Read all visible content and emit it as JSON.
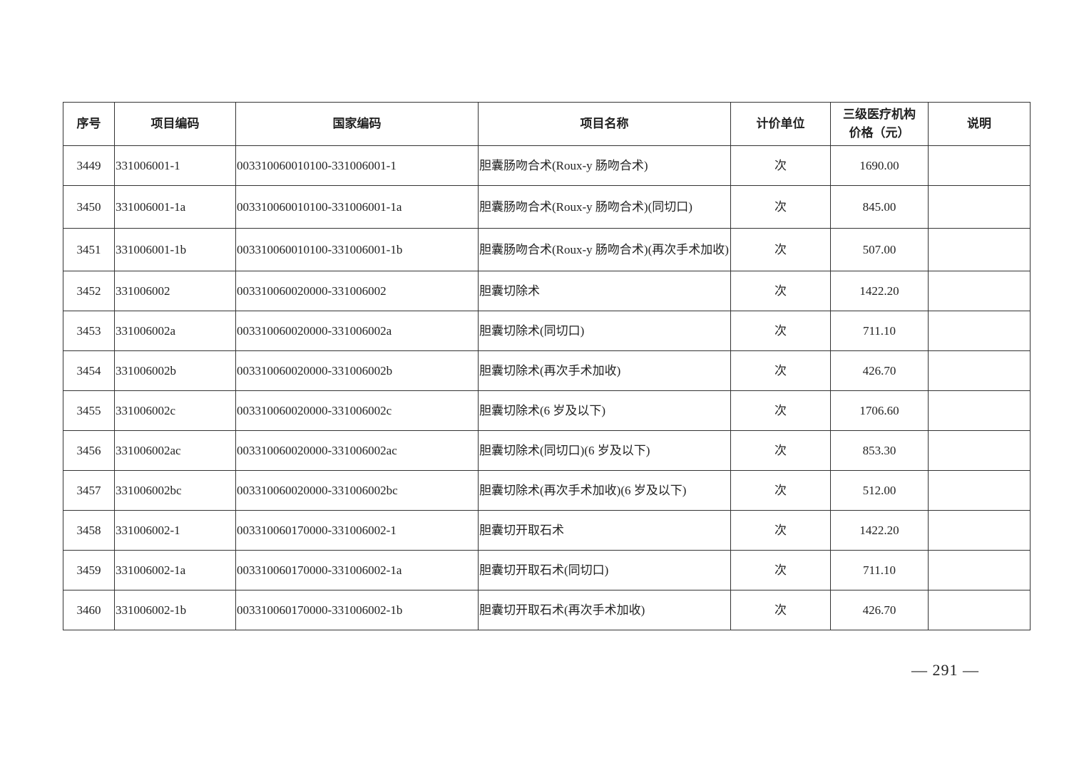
{
  "table": {
    "headers": [
      "序号",
      "项目编码",
      "国家编码",
      "项目名称",
      "计价单位",
      "三级医疗机构价格（元）",
      "说明"
    ],
    "header_price_line1": "三级医疗机构",
    "header_price_line2": "价格（元）",
    "rows": [
      {
        "no": "3449",
        "code": "331006001-1",
        "national": "003310060010100-331006001-1",
        "name": "胆囊肠吻合术(Roux-y 肠吻合术)",
        "unit": "次",
        "price": "1690.00",
        "note": ""
      },
      {
        "no": "3450",
        "code": "331006001-1a",
        "national": "003310060010100-331006001-1a",
        "name": "胆囊肠吻合术(Roux-y 肠吻合术)(同切口)",
        "unit": "次",
        "price": "845.00",
        "note": ""
      },
      {
        "no": "3451",
        "code": "331006001-1b",
        "national": "003310060010100-331006001-1b",
        "name": "胆囊肠吻合术(Roux-y 肠吻合术)(再次手术加收)",
        "unit": "次",
        "price": "507.00",
        "note": ""
      },
      {
        "no": "3452",
        "code": "331006002",
        "national": "003310060020000-331006002",
        "name": "胆囊切除术",
        "unit": "次",
        "price": "1422.20",
        "note": ""
      },
      {
        "no": "3453",
        "code": "331006002a",
        "national": "003310060020000-331006002a",
        "name": "胆囊切除术(同切口)",
        "unit": "次",
        "price": "711.10",
        "note": ""
      },
      {
        "no": "3454",
        "code": "331006002b",
        "national": "003310060020000-331006002b",
        "name": "胆囊切除术(再次手术加收)",
        "unit": "次",
        "price": "426.70",
        "note": ""
      },
      {
        "no": "3455",
        "code": "331006002c",
        "national": "003310060020000-331006002c",
        "name": "胆囊切除术(6 岁及以下)",
        "unit": "次",
        "price": "1706.60",
        "note": ""
      },
      {
        "no": "3456",
        "code": "331006002ac",
        "national": "003310060020000-331006002ac",
        "name": "胆囊切除术(同切口)(6 岁及以下)",
        "unit": "次",
        "price": "853.30",
        "note": ""
      },
      {
        "no": "3457",
        "code": "331006002bc",
        "national": "003310060020000-331006002bc",
        "name": "胆囊切除术(再次手术加收)(6 岁及以下)",
        "unit": "次",
        "price": "512.00",
        "note": ""
      },
      {
        "no": "3458",
        "code": "331006002-1",
        "national": "003310060170000-331006002-1",
        "name": "胆囊切开取石术",
        "unit": "次",
        "price": "1422.20",
        "note": ""
      },
      {
        "no": "3459",
        "code": "331006002-1a",
        "national": "003310060170000-331006002-1a",
        "name": "胆囊切开取石术(同切口)",
        "unit": "次",
        "price": "711.10",
        "note": ""
      },
      {
        "no": "3460",
        "code": "331006002-1b",
        "national": "003310060170000-331006002-1b",
        "name": "胆囊切开取石术(再次手术加收)",
        "unit": "次",
        "price": "426.70",
        "note": ""
      }
    ]
  },
  "page_number": "— 291 —"
}
